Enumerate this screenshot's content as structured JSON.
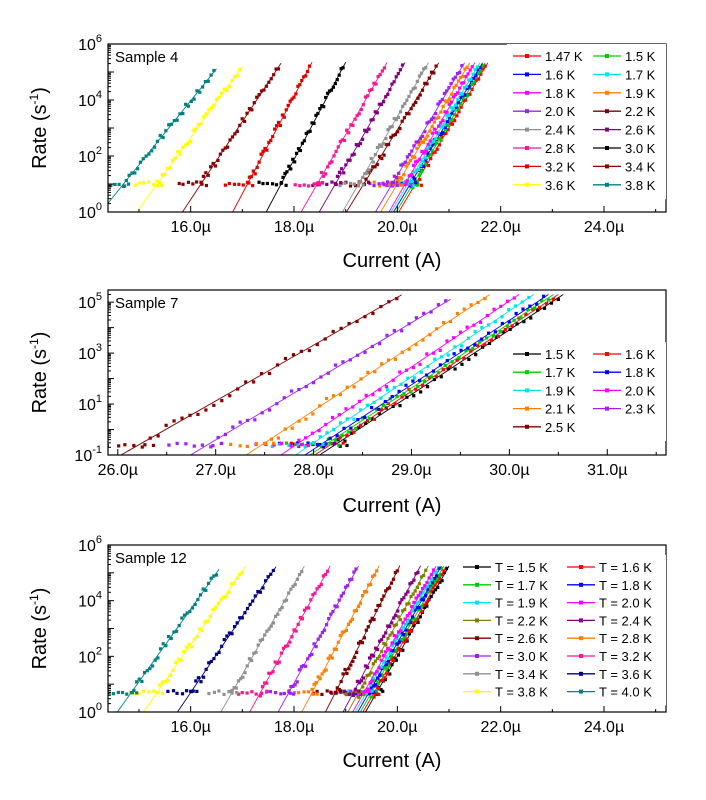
{
  "chart_data": [
    {
      "type": "scatter",
      "title": "Sample 4",
      "xlabel": "Current (A)",
      "ylabel_main": "Rate (s",
      "ylabel_exp": "-1",
      "ylabel_close": ")",
      "yscale": "log",
      "xlim": [
        14.4,
        25.2
      ],
      "ylim": [
        1,
        1000000
      ],
      "xticks": [
        {
          "v": 16,
          "label": "16.0µ"
        },
        {
          "v": 18,
          "label": "18.0µ"
        },
        {
          "v": 20,
          "label": "20.0µ"
        },
        {
          "v": 22,
          "label": "22.0µ"
        },
        {
          "v": 24,
          "label": "24.0µ"
        }
      ],
      "yticks": [
        {
          "v": 1,
          "b": "10",
          "e": "0"
        },
        {
          "v": 100,
          "b": "10",
          "e": "2"
        },
        {
          "v": 10000,
          "b": "10",
          "e": "4"
        },
        {
          "v": 1000000,
          "b": "10",
          "e": "6"
        }
      ],
      "legend_columns": 2,
      "series": [
        {
          "name": "1.47 K",
          "color": "#ff0000",
          "start": [
            20.35,
            10
          ],
          "end": [
            21.7,
            150000
          ]
        },
        {
          "name": "1.5 K",
          "color": "#00cc00",
          "start": [
            20.3,
            10
          ],
          "end": [
            21.65,
            150000
          ]
        },
        {
          "name": "1.6 K",
          "color": "#0000ff",
          "start": [
            20.25,
            10
          ],
          "end": [
            21.6,
            150000
          ]
        },
        {
          "name": "1.7 K",
          "color": "#00e5e5",
          "start": [
            20.2,
            10
          ],
          "end": [
            21.55,
            150000
          ]
        },
        {
          "name": "1.8 K",
          "color": "#ff00ff",
          "start": [
            20.15,
            10
          ],
          "end": [
            21.45,
            150000
          ]
        },
        {
          "name": "1.9 K",
          "color": "#ff8000",
          "start": [
            20.0,
            10
          ],
          "end": [
            21.35,
            150000
          ]
        },
        {
          "name": "2.0 K",
          "color": "#a020f0",
          "start": [
            19.9,
            10
          ],
          "end": [
            21.25,
            150000
          ]
        },
        {
          "name": "2.2 K",
          "color": "#800000",
          "start": [
            19.35,
            10
          ],
          "end": [
            20.75,
            150000
          ]
        },
        {
          "name": "2.4 K",
          "color": "#909090",
          "start": [
            19.25,
            10
          ],
          "end": [
            20.55,
            150000
          ]
        },
        {
          "name": "2.6 K",
          "color": "#800080",
          "start": [
            18.8,
            10
          ],
          "end": [
            20.1,
            150000
          ]
        },
        {
          "name": "2.8 K",
          "color": "#ff1493",
          "start": [
            18.45,
            10
          ],
          "end": [
            19.75,
            150000
          ]
        },
        {
          "name": "3.0 K",
          "color": "#000000",
          "start": [
            17.75,
            10
          ],
          "end": [
            18.95,
            150000
          ]
        },
        {
          "name": "3.2 K",
          "color": "#e00000",
          "start": [
            17.1,
            10
          ],
          "end": [
            18.3,
            150000
          ]
        },
        {
          "name": "3.4 K",
          "color": "#8b0000",
          "start": [
            16.2,
            10
          ],
          "end": [
            17.7,
            150000
          ]
        },
        {
          "name": "3.6 K",
          "color": "#ffff00",
          "start": [
            15.35,
            10
          ],
          "end": [
            16.95,
            120000
          ]
        },
        {
          "name": "3.8 K",
          "color": "#008080",
          "start": [
            14.7,
            10
          ],
          "end": [
            16.45,
            100000
          ]
        }
      ]
    },
    {
      "type": "scatter",
      "title": "Sample 7",
      "xlabel": "Current (A)",
      "ylabel_main": "Rate (s",
      "ylabel_exp": "-1",
      "ylabel_close": ")",
      "yscale": "log",
      "xlim": [
        25.9,
        31.6
      ],
      "ylim": [
        0.1,
        300000
      ],
      "xticks": [
        {
          "v": 26,
          "label": "26.0µ"
        },
        {
          "v": 27,
          "label": "27.0µ"
        },
        {
          "v": 28,
          "label": "28.0µ"
        },
        {
          "v": 29,
          "label": "29.0µ"
        },
        {
          "v": 30,
          "label": "30.0µ"
        },
        {
          "v": 31,
          "label": "31.0µ"
        }
      ],
      "yticks": [
        {
          "v": 0.1,
          "b": "10",
          "e": "-1"
        },
        {
          "v": 10,
          "b": "10",
          "e": "1"
        },
        {
          "v": 1000,
          "b": "10",
          "e": "3"
        },
        {
          "v": 100000,
          "b": "10",
          "e": "5"
        }
      ],
      "legend_columns": 2,
      "series": [
        {
          "name": "1.5 K",
          "color": "#000000",
          "start": [
            28.25,
            0.3
          ],
          "end": [
            30.5,
            150000
          ]
        },
        {
          "name": "1.6 K",
          "color": "#ff0000",
          "start": [
            28.2,
            0.3
          ],
          "end": [
            30.45,
            150000
          ]
        },
        {
          "name": "1.7 K",
          "color": "#00cc00",
          "start": [
            28.15,
            0.3
          ],
          "end": [
            30.4,
            150000
          ]
        },
        {
          "name": "1.8 K",
          "color": "#0000ff",
          "start": [
            28.1,
            0.3
          ],
          "end": [
            30.35,
            150000
          ]
        },
        {
          "name": "1.9 K",
          "color": "#00e5e5",
          "start": [
            28.0,
            0.3
          ],
          "end": [
            30.2,
            150000
          ]
        },
        {
          "name": "2.0 K",
          "color": "#ff00ff",
          "start": [
            27.85,
            0.3
          ],
          "end": [
            30.05,
            150000
          ]
        },
        {
          "name": "2.1 K",
          "color": "#ff8000",
          "start": [
            27.5,
            0.3
          ],
          "end": [
            29.75,
            150000
          ]
        },
        {
          "name": "2.3 K",
          "color": "#a020f0",
          "start": [
            26.95,
            0.3
          ],
          "end": [
            29.35,
            100000
          ]
        },
        {
          "name": "2.5 K",
          "color": "#800000",
          "start": [
            26.25,
            0.3
          ],
          "end": [
            28.85,
            150000
          ]
        }
      ]
    },
    {
      "type": "scatter",
      "title": "Sample 12",
      "xlabel": "Current (A)",
      "ylabel_main": "Rate (s",
      "ylabel_exp": "-1",
      "ylabel_close": ")",
      "yscale": "log",
      "xlim": [
        14.4,
        25.2
      ],
      "ylim": [
        1,
        1000000
      ],
      "xticks": [
        {
          "v": 16,
          "label": "16.0µ"
        },
        {
          "v": 18,
          "label": "18.0µ"
        },
        {
          "v": 20,
          "label": "20.0µ"
        },
        {
          "v": 22,
          "label": "22.0µ"
        },
        {
          "v": 24,
          "label": "24.0µ"
        }
      ],
      "yticks": [
        {
          "v": 1,
          "b": "10",
          "e": "0"
        },
        {
          "v": 100,
          "b": "10",
          "e": "2"
        },
        {
          "v": 10000,
          "b": "10",
          "e": "4"
        },
        {
          "v": 1000000,
          "b": "10",
          "e": "6"
        }
      ],
      "legend_columns": 2,
      "series": [
        {
          "name": "T = 1.5 K",
          "color": "#000000",
          "start": [
            19.6,
            5
          ],
          "end": [
            20.95,
            120000
          ]
        },
        {
          "name": "T = 1.6 K",
          "color": "#ff0000",
          "start": [
            19.55,
            5
          ],
          "end": [
            20.9,
            120000
          ]
        },
        {
          "name": "T = 1.7 K",
          "color": "#00cc00",
          "start": [
            19.5,
            5
          ],
          "end": [
            20.85,
            120000
          ]
        },
        {
          "name": "T = 1.8 K",
          "color": "#0000ff",
          "start": [
            19.45,
            5
          ],
          "end": [
            20.8,
            120000
          ]
        },
        {
          "name": "T = 1.9 K",
          "color": "#00e5e5",
          "start": [
            19.4,
            5
          ],
          "end": [
            20.75,
            120000
          ]
        },
        {
          "name": "T = 2.0 K",
          "color": "#ff00ff",
          "start": [
            19.35,
            5
          ],
          "end": [
            20.7,
            120000
          ]
        },
        {
          "name": "T = 2.2 K",
          "color": "#808000",
          "start": [
            19.25,
            5
          ],
          "end": [
            20.55,
            120000
          ]
        },
        {
          "name": "T = 2.4 K",
          "color": "#800080",
          "start": [
            19.15,
            5
          ],
          "end": [
            20.4,
            120000
          ]
        },
        {
          "name": "T = 2.6 K",
          "color": "#800000",
          "start": [
            18.8,
            5
          ],
          "end": [
            20.0,
            120000
          ]
        },
        {
          "name": "T = 2.8 K",
          "color": "#ff8000",
          "start": [
            18.35,
            5
          ],
          "end": [
            19.6,
            120000
          ]
        },
        {
          "name": "T = 3.0 K",
          "color": "#a020f0",
          "start": [
            17.9,
            5
          ],
          "end": [
            19.2,
            120000
          ]
        },
        {
          "name": "T = 3.2 K",
          "color": "#ff1493",
          "start": [
            17.35,
            5
          ],
          "end": [
            18.65,
            120000
          ]
        },
        {
          "name": "T = 3.4 K",
          "color": "#909090",
          "start": [
            16.8,
            5
          ],
          "end": [
            18.15,
            120000
          ]
        },
        {
          "name": "T = 3.6 K",
          "color": "#000080",
          "start": [
            16.0,
            5
          ],
          "end": [
            17.6,
            120000
          ]
        },
        {
          "name": "T = 3.8 K",
          "color": "#ffff00",
          "start": [
            15.35,
            5
          ],
          "end": [
            17.0,
            120000
          ]
        },
        {
          "name": "T = 4.0 K",
          "color": "#008080",
          "start": [
            14.85,
            5
          ],
          "end": [
            16.5,
            100000
          ]
        }
      ]
    }
  ]
}
